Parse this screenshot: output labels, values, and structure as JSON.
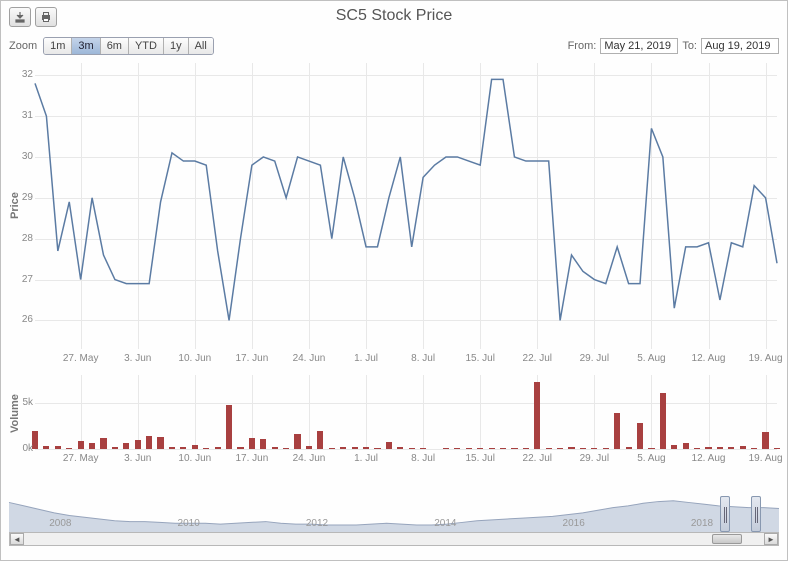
{
  "title": "SC5 Stock Price",
  "zoom_label": "Zoom",
  "zoom_buttons": [
    "1m",
    "3m",
    "6m",
    "YTD",
    "1y",
    "All"
  ],
  "zoom_active": "3m",
  "date_from_label": "From:",
  "date_to_label": "To:",
  "date_from": "May 21, 2019",
  "date_to": "Aug 19, 2019",
  "price_axis_label": "Price",
  "volume_axis_label": "Volume",
  "price_chart": {
    "type": "line",
    "line_color": "#5b7ba3",
    "line_width": 1.5,
    "background_color": "#ffffff",
    "grid_color": "#e8e8e8",
    "ylim": [
      25.3,
      32.3
    ],
    "yticks": [
      26,
      27,
      28,
      29,
      30,
      31,
      32
    ],
    "xtick_labels": [
      "27. May",
      "3. Jun",
      "10. Jun",
      "17. Jun",
      "24. Jun",
      "1. Jul",
      "8. Jul",
      "15. Jul",
      "22. Jul",
      "29. Jul",
      "5. Aug",
      "12. Aug",
      "19. Aug"
    ],
    "xtick_positions": [
      4,
      9,
      14,
      19,
      24,
      29,
      34,
      39,
      44,
      49,
      54,
      59,
      64
    ],
    "data": [
      31.8,
      31.0,
      27.7,
      28.9,
      27.0,
      29.0,
      27.6,
      27.0,
      26.9,
      26.9,
      26.9,
      28.9,
      30.1,
      29.9,
      29.9,
      29.8,
      27.7,
      26.0,
      28.0,
      29.8,
      30.0,
      29.9,
      29.0,
      30.0,
      29.9,
      29.8,
      28.0,
      30.0,
      29.0,
      27.8,
      27.8,
      29.0,
      30.0,
      27.8,
      29.5,
      29.8,
      30.0,
      30.0,
      29.9,
      29.8,
      31.9,
      31.9,
      30.0,
      29.9,
      29.9,
      29.9,
      26.0,
      27.6,
      27.2,
      27.0,
      26.9,
      27.8,
      26.9,
      26.9,
      30.7,
      30.0,
      26.3,
      27.8,
      27.8,
      27.9,
      26.5,
      27.9,
      27.8,
      29.3,
      29.0,
      27.4
    ]
  },
  "volume_chart": {
    "type": "bar",
    "bar_color": "#a84040",
    "ylim": [
      0,
      8000
    ],
    "yticks_labels": [
      "0k",
      "5k"
    ],
    "yticks_values": [
      0,
      5000
    ],
    "data": [
      1900,
      300,
      300,
      100,
      900,
      700,
      1200,
      200,
      600,
      1000,
      1400,
      1300,
      200,
      200,
      400,
      100,
      200,
      4800,
      200,
      1200,
      1100,
      200,
      100,
      1600,
      300,
      2000,
      100,
      200,
      200,
      200,
      100,
      800,
      200,
      100,
      100,
      0,
      100,
      100,
      100,
      100,
      100,
      100,
      100,
      100,
      7200,
      100,
      100,
      200,
      100,
      100,
      100,
      3900,
      200,
      2800,
      100,
      6100,
      400,
      700,
      100,
      200,
      200,
      200,
      300,
      100,
      1800,
      100
    ]
  },
  "navigator": {
    "xticks": [
      "2008",
      "2010",
      "2012",
      "2014",
      "2016",
      "2018"
    ],
    "selection_start_pct": 93,
    "selection_end_pct": 97,
    "area_color": "#d0d8e4",
    "line_color": "#96a4bc",
    "data": [
      34,
      30,
      26,
      22,
      19,
      17,
      15,
      13,
      12,
      12,
      11,
      10,
      10,
      10,
      9,
      10,
      11,
      12,
      10,
      9,
      9,
      8,
      8,
      8,
      9,
      10,
      9,
      8,
      8,
      9,
      11,
      13,
      14,
      15,
      16,
      17,
      18,
      20,
      22,
      25,
      28,
      30,
      33,
      35,
      36,
      34,
      32,
      30,
      29,
      28,
      28,
      27
    ]
  },
  "axis_text_color": "#888888",
  "tick_fontsize": 10,
  "label_fontsize": 11
}
